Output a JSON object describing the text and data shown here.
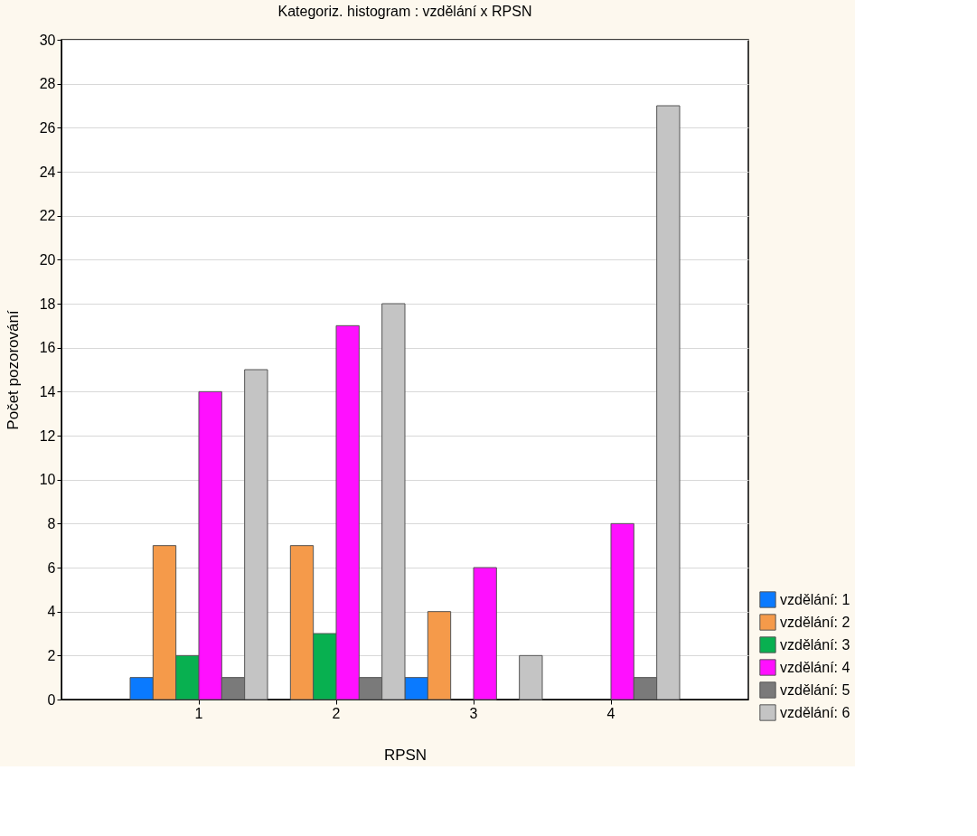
{
  "chart_data": {
    "type": "bar",
    "title": "Kategoriz. histogram : vzdělání x RPSN",
    "xlabel": "RPSN",
    "ylabel": "Počet pozorování",
    "categories": [
      "1",
      "2",
      "3",
      "4"
    ],
    "series": [
      {
        "name": "vzdělání: 1",
        "color": "#0a7aff",
        "values": [
          1,
          null,
          1,
          null
        ]
      },
      {
        "name": "vzdělání: 2",
        "color": "#f59a4a",
        "values": [
          7,
          7,
          4,
          null
        ]
      },
      {
        "name": "vzdělání: 3",
        "color": "#08b050",
        "values": [
          2,
          3,
          null,
          null
        ]
      },
      {
        "name": "vzdělání: 4",
        "color": "#ff10ff",
        "values": [
          14,
          17,
          6,
          8
        ]
      },
      {
        "name": "vzdělání: 5",
        "color": "#7a7a7a",
        "values": [
          1,
          1,
          null,
          1
        ]
      },
      {
        "name": "vzdělání: 6",
        "color": "#c4c4c4",
        "values": [
          15,
          18,
          2,
          27
        ]
      }
    ],
    "ylim": [
      0,
      30
    ],
    "yticks": [
      0,
      2,
      4,
      6,
      8,
      10,
      12,
      14,
      16,
      18,
      20,
      22,
      24,
      26,
      28,
      30
    ],
    "grid": "y",
    "legend": "bottom right"
  }
}
